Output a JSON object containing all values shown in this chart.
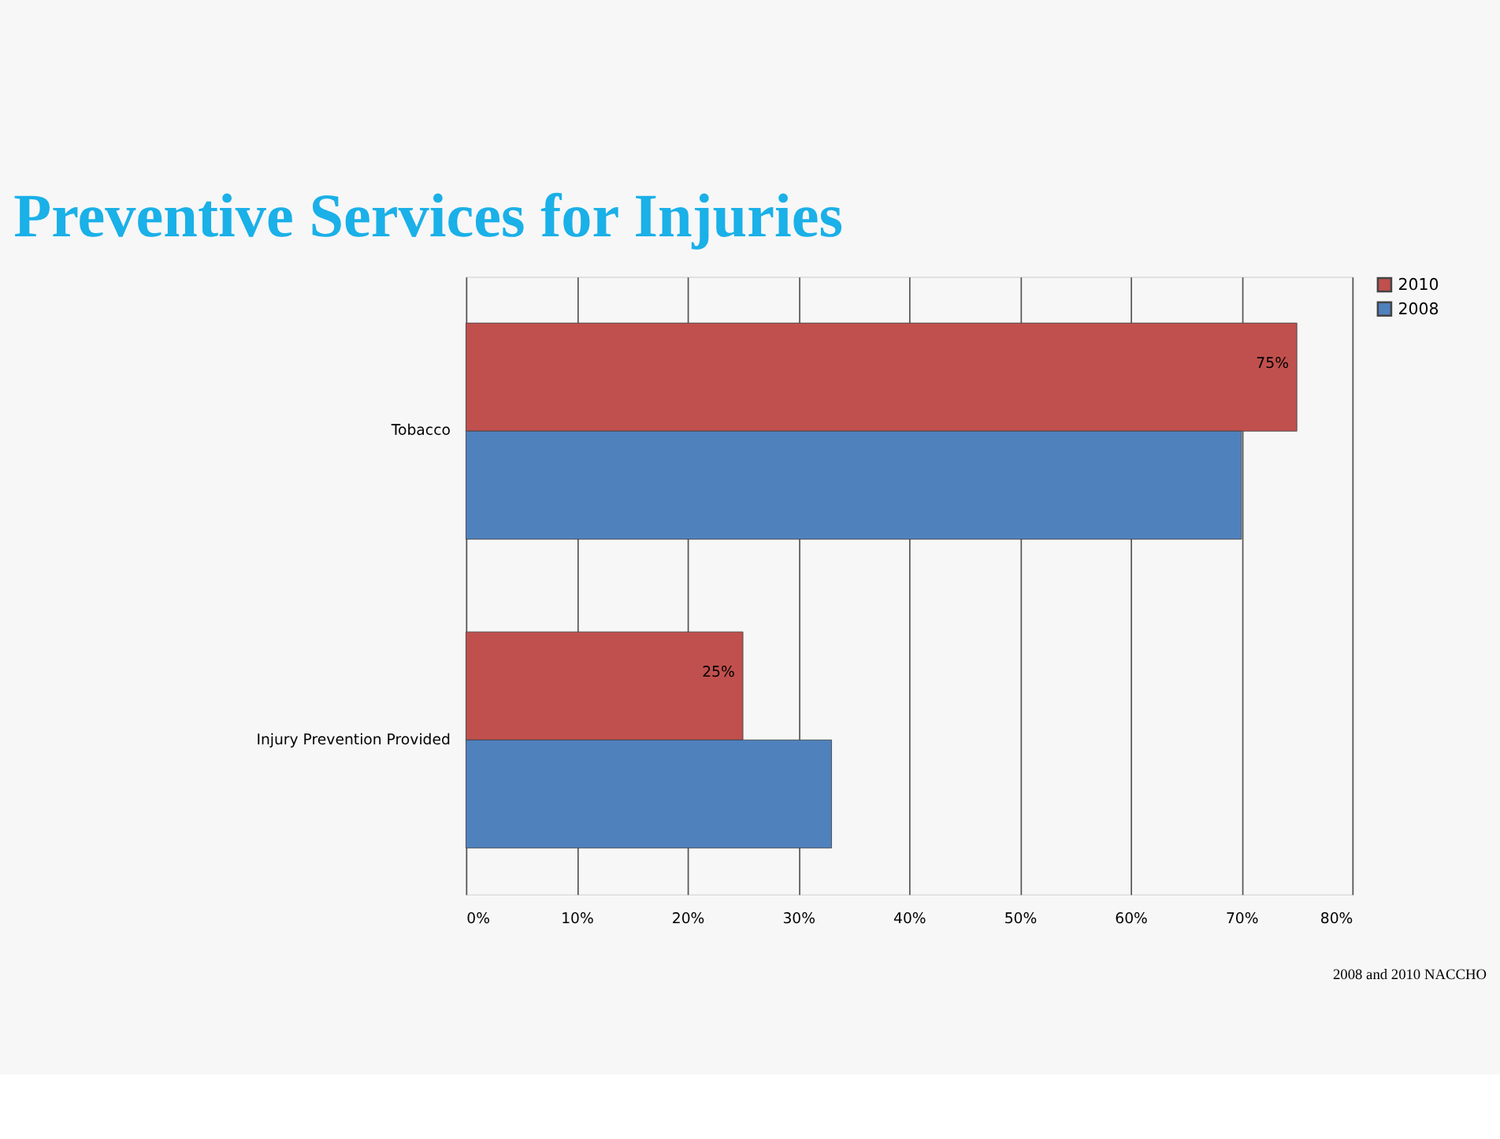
{
  "chart_data": {
    "type": "bar",
    "orientation": "horizontal",
    "title": "Preventive Services for Injuries",
    "categories": [
      "Tobacco",
      "Injury Prevention Provided"
    ],
    "series": [
      {
        "name": "2010",
        "color": "#c0504d",
        "values": [
          75,
          25
        ],
        "value_labels": [
          "75%",
          "25%"
        ]
      },
      {
        "name": "2008",
        "color": "#4f81bd",
        "values": [
          70,
          33
        ]
      }
    ],
    "xlim": [
      0,
      80
    ],
    "xticks": [
      {
        "value": 0,
        "label": "0%"
      },
      {
        "value": 10,
        "label": "10%"
      },
      {
        "value": 20,
        "label": "20%"
      },
      {
        "value": 30,
        "label": "30%"
      },
      {
        "value": 40,
        "label": "40%"
      },
      {
        "value": 50,
        "label": "50%"
      },
      {
        "value": 60,
        "label": "60%"
      },
      {
        "value": 70,
        "label": "70%"
      },
      {
        "value": 80,
        "label": "80%"
      }
    ],
    "grid": "x",
    "legend": "right",
    "annotations": [
      "2008 and 2010 NACCHO"
    ]
  }
}
